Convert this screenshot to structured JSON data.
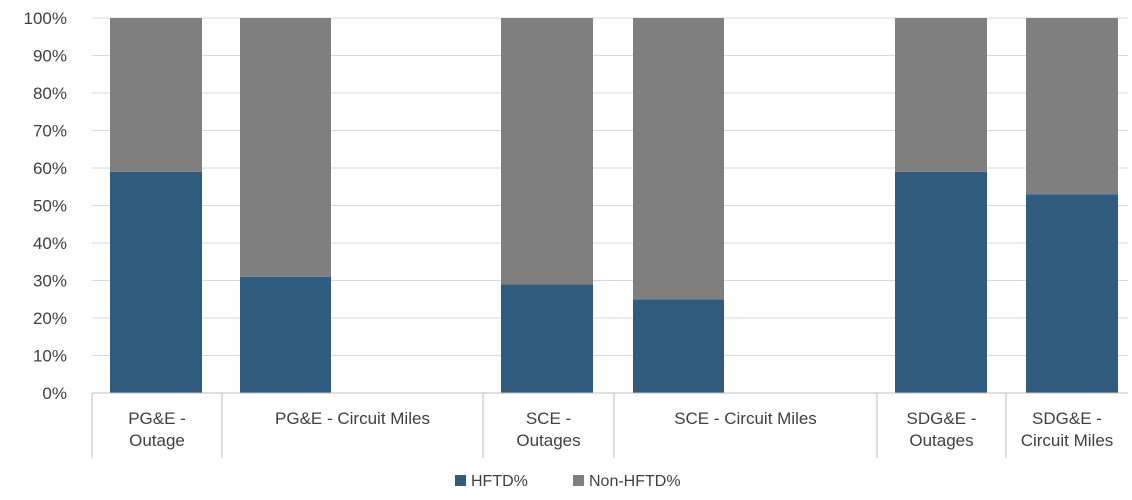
{
  "chart_data": {
    "type": "bar",
    "stacked": true,
    "percent_stacked": true,
    "title": "",
    "xlabel": "",
    "ylabel": "",
    "ylim": [
      0,
      100
    ],
    "grid": true,
    "legend_position": "bottom",
    "categories": [
      [
        "PG&E -",
        "Outage"
      ],
      [
        "PG&E - Circuit Miles"
      ],
      [
        "SCE -",
        "Outages"
      ],
      [
        "SCE - Circuit Miles"
      ],
      [
        "SDG&E -",
        "Outages"
      ],
      [
        "SDG&E -",
        "Circuit Miles"
      ]
    ],
    "y_ticks": [
      "0%",
      "10%",
      "20%",
      "30%",
      "40%",
      "50%",
      "60%",
      "70%",
      "80%",
      "90%",
      "100%"
    ],
    "series": [
      {
        "name": "HFTD%",
        "color": "#2f5b7e",
        "values": [
          59,
          31,
          29,
          25,
          59,
          53
        ]
      },
      {
        "name": "Non-HFTD%",
        "color": "#7f7f7f",
        "values": [
          41,
          69,
          71,
          75,
          41,
          47
        ]
      }
    ]
  }
}
